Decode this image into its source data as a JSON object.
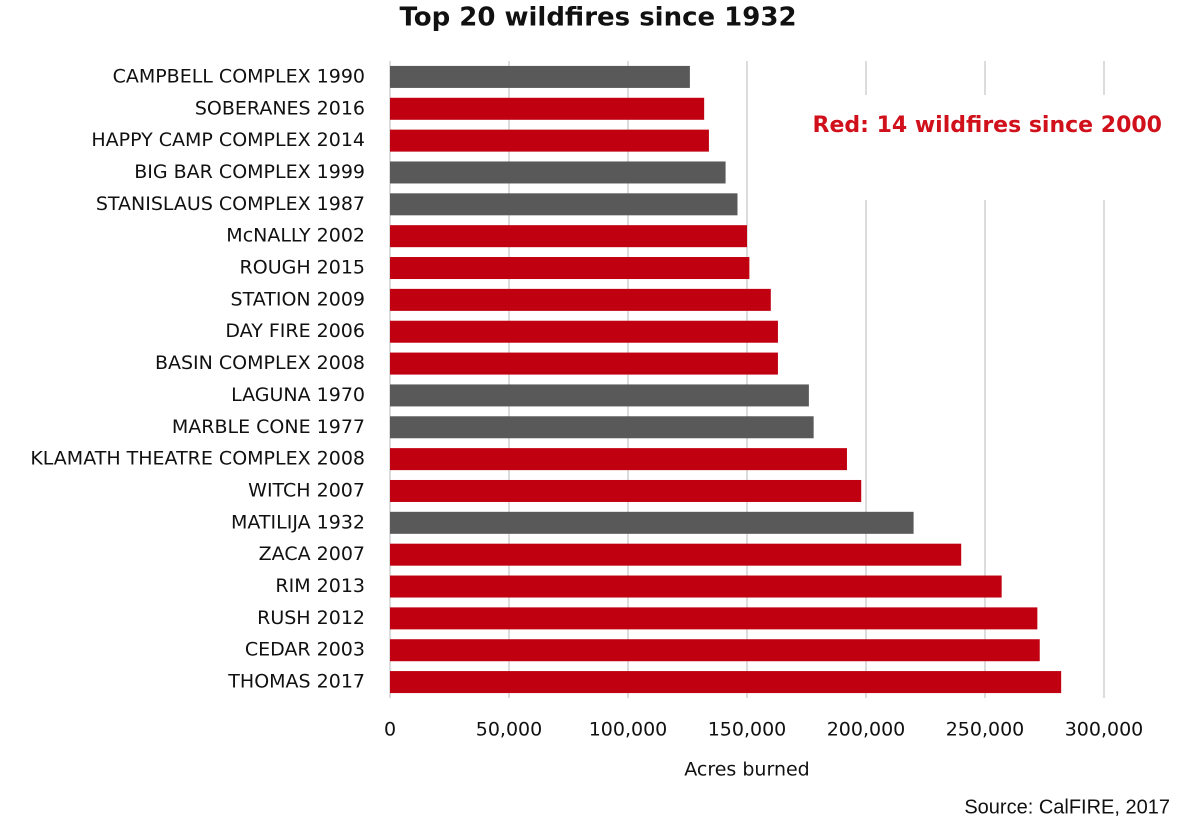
{
  "chart_data": {
    "type": "hbar",
    "title": "Top 20 wildfires since 1932",
    "annotation": "Red: 14 wildfires since 2000",
    "x_label": "Acres burned",
    "source": "Source: CalFIRE, 2017",
    "categories": [
      "CAMPBELL COMPLEX 1990",
      "SOBERANES 2016",
      "HAPPY CAMP COMPLEX 2014",
      "BIG BAR COMPLEX 1999",
      "STANISLAUS COMPLEX 1987",
      "McNALLY 2002",
      "ROUGH 2015",
      "STATION 2009",
      "DAY FIRE 2006",
      "BASIN COMPLEX 2008",
      "LAGUNA 1970",
      "MARBLE CONE 1977",
      "KLAMATH THEATRE COMPLEX 2008",
      "WITCH 2007",
      "MATILIJA 1932",
      "ZACA 2007",
      "RIM 2013",
      "RUSH 2012",
      "CEDAR 2003",
      "THOMAS 2017"
    ],
    "values": [
      126000,
      132000,
      134000,
      141000,
      146000,
      150000,
      151000,
      160000,
      163000,
      163000,
      176000,
      178000,
      192000,
      198000,
      220000,
      240000,
      257000,
      272000,
      273000,
      282000
    ],
    "colors": [
      "#595959",
      "#c00010",
      "#c00010",
      "#595959",
      "#595959",
      "#c00010",
      "#c00010",
      "#c00010",
      "#c00010",
      "#c00010",
      "#595959",
      "#595959",
      "#c00010",
      "#c00010",
      "#595959",
      "#c00010",
      "#c00010",
      "#c00010",
      "#c00010",
      "#c00010"
    ],
    "xlim": [
      0,
      300000
    ],
    "xticks": [
      0,
      {
        "value": 50000,
        "label": "50,000"
      },
      {
        "value": 100000,
        "label": "100,000"
      },
      {
        "value": 150000,
        "label": "150,000"
      },
      {
        "value": 200000,
        "label": "200,000"
      },
      {
        "value": 250000,
        "label": "250,000"
      },
      {
        "value": 300000,
        "label": "300,000"
      }
    ],
    "grid": true
  }
}
